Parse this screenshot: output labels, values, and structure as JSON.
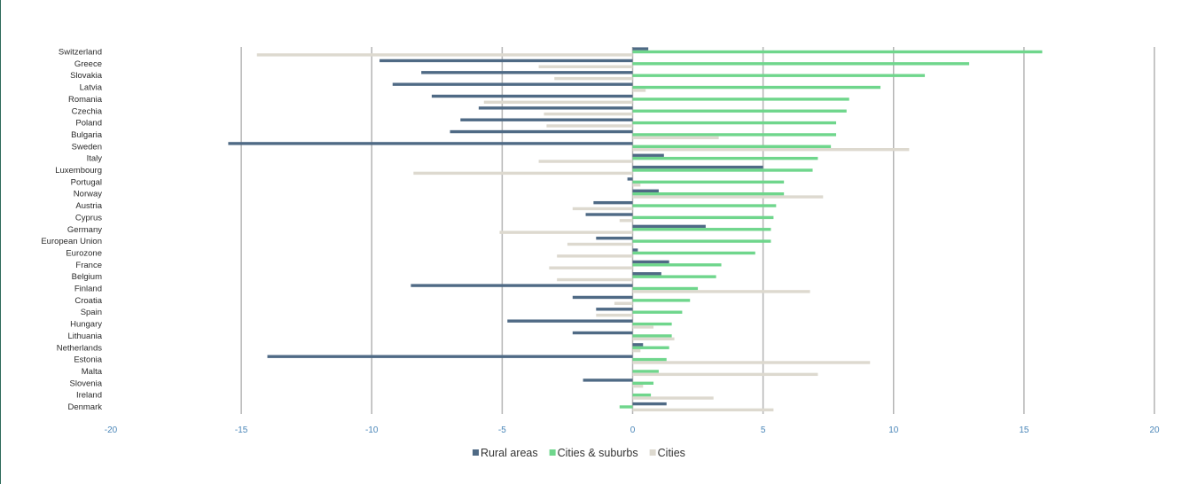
{
  "chart_data": {
    "type": "bar",
    "orientation": "horizontal",
    "categories": [
      "Switzerland",
      "Greece",
      "Slovakia",
      "Latvia",
      "Romania",
      "Czechia",
      "Poland",
      "Bulgaria",
      "Sweden",
      "Italy",
      "Luxembourg",
      "Portugal",
      "Norway",
      "Austria",
      "Cyprus",
      "Germany",
      "European Union",
      "Eurozone",
      "France",
      "Belgium",
      "Finland",
      "Croatia",
      "Spain",
      "Hungary",
      "Lithuania",
      "Netherlands",
      "Estonia",
      "Malta",
      "Slovenia",
      "Ireland",
      "Denmark"
    ],
    "series": [
      {
        "name": "Rural areas",
        "color": "#4f6a85",
        "values": [
          0.6,
          -9.7,
          -8.1,
          -9.2,
          -7.7,
          -5.9,
          -6.6,
          -7.0,
          -15.5,
          1.2,
          5.0,
          -0.2,
          1.0,
          -1.5,
          -1.8,
          2.8,
          -1.4,
          0.2,
          1.4,
          1.1,
          -8.5,
          -2.3,
          -1.4,
          -4.8,
          -2.3,
          0.4,
          -14.0,
          0.0,
          -1.9,
          0.0,
          1.3
        ]
      },
      {
        "name": "Cities & suburbs",
        "color": "#6fd68c",
        "values": [
          15.7,
          12.9,
          11.2,
          9.5,
          8.3,
          8.2,
          7.8,
          7.8,
          7.6,
          7.1,
          6.9,
          5.8,
          5.8,
          5.5,
          5.4,
          5.3,
          5.3,
          4.7,
          3.4,
          3.2,
          2.5,
          2.2,
          1.9,
          1.5,
          1.5,
          1.4,
          1.3,
          1.0,
          0.8,
          0.7,
          -0.5
        ]
      },
      {
        "name": "Cities",
        "color": "#ddd9cf",
        "values": [
          -14.4,
          -3.6,
          -3.0,
          0.5,
          -5.7,
          -3.4,
          -3.3,
          3.3,
          10.6,
          -3.6,
          -8.4,
          0.3,
          7.3,
          -2.3,
          -0.5,
          -5.1,
          -2.5,
          -2.9,
          -3.2,
          -2.9,
          6.8,
          -0.7,
          -1.4,
          0.8,
          1.6,
          0.3,
          9.1,
          7.1,
          0.4,
          3.1,
          5.4
        ]
      }
    ],
    "x_ticks": [
      "-20",
      "-15",
      "-10",
      "-5",
      "0",
      "5",
      "10",
      "15",
      "20"
    ],
    "xlim": [
      -20,
      20
    ],
    "grid": true,
    "legend_position": "bottom-center",
    "title": "",
    "xlabel": "",
    "ylabel": ""
  }
}
